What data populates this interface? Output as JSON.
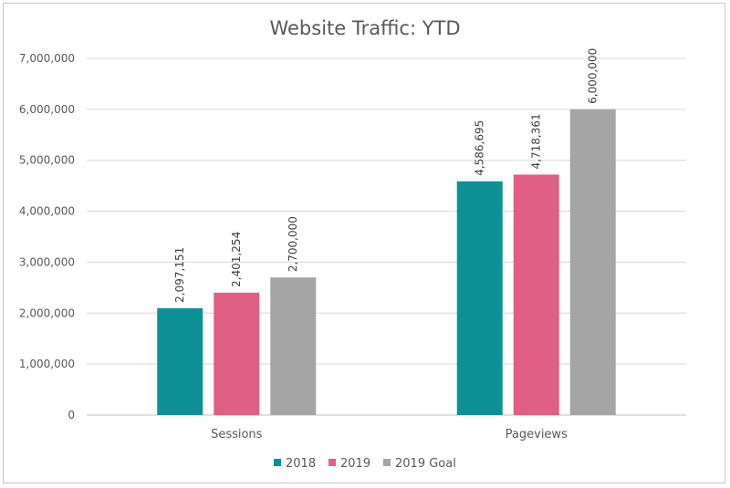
{
  "chart_data": {
    "type": "bar",
    "title": "Website Traffic: YTD",
    "xlabel": "",
    "ylabel": "",
    "categories": [
      "Sessions",
      "Pageviews"
    ],
    "series": [
      {
        "name": "2018",
        "color": "#0E9196",
        "values": [
          2097151,
          4586695
        ],
        "labels": [
          "2,097,151",
          "4,586,695"
        ]
      },
      {
        "name": "2019",
        "color": "#E15F84",
        "values": [
          2401254,
          4718361
        ],
        "labels": [
          "2,401,254",
          "4,718,361"
        ]
      },
      {
        "name": "2019 Goal",
        "color": "#A5A5A5",
        "values": [
          2700000,
          6000000
        ],
        "labels": [
          "2,700,000",
          "6,000,000"
        ]
      }
    ],
    "ylim": [
      0,
      7000000
    ],
    "yticks": [
      0,
      1000000,
      2000000,
      3000000,
      4000000,
      5000000,
      6000000,
      7000000
    ],
    "ytick_labels": [
      "0",
      "1,000,000",
      "2,000,000",
      "3,000,000",
      "4,000,000",
      "5,000,000",
      "6,000,000",
      "7,000,000"
    ],
    "grid": true,
    "legend_position": "bottom"
  }
}
